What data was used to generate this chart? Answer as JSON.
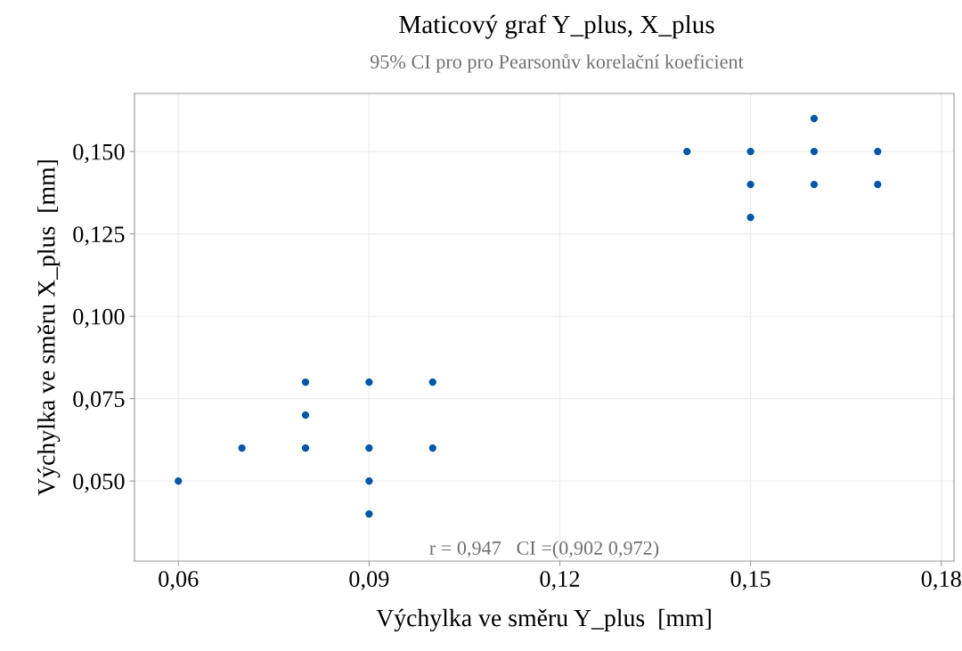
{
  "chart_data": {
    "type": "scatter",
    "title": "Maticový graf Y_plus, X_plus",
    "subtitle": "95% CI pro pro Pearsonův korelační koeficient",
    "xlabel": "Výchylka ve směru Y_plus  [mm]",
    "ylabel": "Výchylka ve směru X_plus  [mm]",
    "series": [
      {
        "color": "#0057a8",
        "x": [
          0.06,
          0.07,
          0.08,
          0.08,
          0.08,
          0.09,
          0.09,
          0.09,
          0.09,
          0.1,
          0.1,
          0.14,
          0.15,
          0.15,
          0.15,
          0.16,
          0.16,
          0.16,
          0.17,
          0.17
        ],
        "values": [
          0.05,
          0.06,
          0.08,
          0.07,
          0.06,
          0.08,
          0.06,
          0.05,
          0.04,
          0.08,
          0.06,
          0.15,
          0.15,
          0.14,
          0.13,
          0.16,
          0.15,
          0.14,
          0.15,
          0.14
        ]
      }
    ],
    "xlim": [
      0.0531,
      0.182
    ],
    "ylim": [
      0.0257,
      0.1676
    ],
    "xticks": [
      {
        "value": 0.06,
        "label": "0,06"
      },
      {
        "value": 0.09,
        "label": "0,09"
      },
      {
        "value": 0.12,
        "label": "0,12"
      },
      {
        "value": 0.15,
        "label": "0,15"
      },
      {
        "value": 0.18,
        "label": "0,18"
      }
    ],
    "yticks": [
      {
        "value": 0.05,
        "label": "0,050"
      },
      {
        "value": 0.075,
        "label": "0,075"
      },
      {
        "value": 0.1,
        "label": "0,100"
      },
      {
        "value": 0.125,
        "label": "0,125"
      },
      {
        "value": 0.15,
        "label": "0,150"
      }
    ],
    "annotations": [
      "r = 0,947   CI =(0,902 0,972)"
    ],
    "grid": true,
    "marker": "circle"
  }
}
